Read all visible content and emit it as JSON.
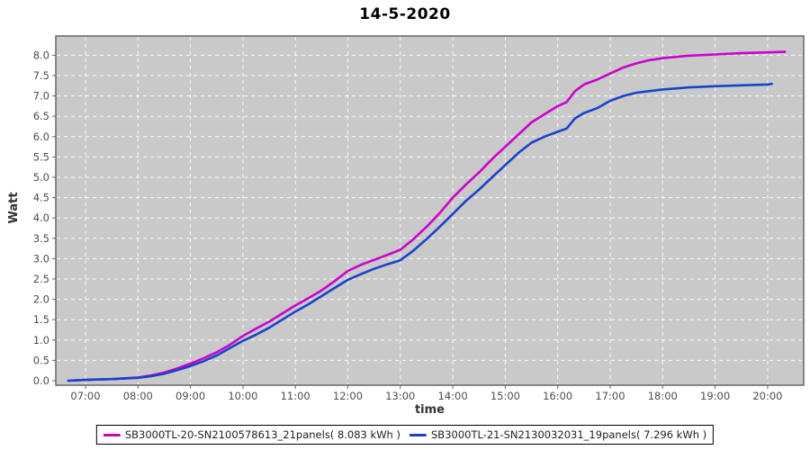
{
  "title": "14-5-2020",
  "chart_data": {
    "type": "line",
    "title": "14-5-2020",
    "xlabel": "time",
    "ylabel": "Watt",
    "plot_bg": "#c9c9c9",
    "grid": "white dashed, on",
    "legend_position": "bottom-center",
    "x_ticks": [
      {
        "label": "07:00",
        "hour": 7
      },
      {
        "label": "08:00",
        "hour": 8
      },
      {
        "label": "09:00",
        "hour": 9
      },
      {
        "label": "10:00",
        "hour": 10
      },
      {
        "label": "11:00",
        "hour": 11
      },
      {
        "label": "12:00",
        "hour": 12
      },
      {
        "label": "13:00",
        "hour": 13
      },
      {
        "label": "14:00",
        "hour": 14
      },
      {
        "label": "15:00",
        "hour": 15
      },
      {
        "label": "16:00",
        "hour": 16
      },
      {
        "label": "17:00",
        "hour": 17
      },
      {
        "label": "18:00",
        "hour": 18
      },
      {
        "label": "19:00",
        "hour": 19
      },
      {
        "label": "20:00",
        "hour": 20
      }
    ],
    "y_ticks": [
      "0.0",
      "0.5",
      "1.0",
      "1.5",
      "2.0",
      "2.5",
      "3.0",
      "3.5",
      "4.0",
      "4.5",
      "5.0",
      "5.5",
      "6.0",
      "6.5",
      "7.0",
      "7.5",
      "8.0"
    ],
    "xlim_hours": [
      6.43,
      20.69
    ],
    "ylim": [
      0,
      8.47
    ],
    "series": [
      {
        "name": "SB3000TL-20-SN2100578613_21panels( 8.083 kWh )",
        "color": "#cc00cc",
        "total_kwh": 8.083,
        "points": [
          [
            6.67,
            0.0
          ],
          [
            7.0,
            0.02
          ],
          [
            7.25,
            0.03
          ],
          [
            7.5,
            0.04
          ],
          [
            7.75,
            0.06
          ],
          [
            8.0,
            0.08
          ],
          [
            8.25,
            0.13
          ],
          [
            8.5,
            0.2
          ],
          [
            8.75,
            0.3
          ],
          [
            9.0,
            0.42
          ],
          [
            9.25,
            0.55
          ],
          [
            9.5,
            0.7
          ],
          [
            9.75,
            0.88
          ],
          [
            10.0,
            1.1
          ],
          [
            10.25,
            1.28
          ],
          [
            10.5,
            1.45
          ],
          [
            10.75,
            1.65
          ],
          [
            11.0,
            1.85
          ],
          [
            11.25,
            2.03
          ],
          [
            11.5,
            2.22
          ],
          [
            11.75,
            2.45
          ],
          [
            12.0,
            2.7
          ],
          [
            12.25,
            2.85
          ],
          [
            12.5,
            2.97
          ],
          [
            12.75,
            3.09
          ],
          [
            13.0,
            3.22
          ],
          [
            13.25,
            3.48
          ],
          [
            13.5,
            3.78
          ],
          [
            13.75,
            4.12
          ],
          [
            14.0,
            4.5
          ],
          [
            14.25,
            4.82
          ],
          [
            14.5,
            5.12
          ],
          [
            14.75,
            5.45
          ],
          [
            15.0,
            5.75
          ],
          [
            15.25,
            6.05
          ],
          [
            15.5,
            6.35
          ],
          [
            15.75,
            6.55
          ],
          [
            16.0,
            6.75
          ],
          [
            16.17,
            6.85
          ],
          [
            16.33,
            7.12
          ],
          [
            16.5,
            7.28
          ],
          [
            16.75,
            7.4
          ],
          [
            17.0,
            7.55
          ],
          [
            17.25,
            7.7
          ],
          [
            17.5,
            7.8
          ],
          [
            17.75,
            7.88
          ],
          [
            18.0,
            7.93
          ],
          [
            18.25,
            7.96
          ],
          [
            18.5,
            7.99
          ],
          [
            19.0,
            8.02
          ],
          [
            19.5,
            8.05
          ],
          [
            20.0,
            8.07
          ],
          [
            20.33,
            8.083
          ]
        ]
      },
      {
        "name": "SB3000TL-21-SN2130032031_19panels( 7.296 kWh )",
        "color": "#1743cb",
        "total_kwh": 7.296,
        "points": [
          [
            6.67,
            0.0
          ],
          [
            7.0,
            0.02
          ],
          [
            7.5,
            0.04
          ],
          [
            8.0,
            0.07
          ],
          [
            8.25,
            0.11
          ],
          [
            8.5,
            0.17
          ],
          [
            8.75,
            0.26
          ],
          [
            9.0,
            0.36
          ],
          [
            9.25,
            0.48
          ],
          [
            9.5,
            0.62
          ],
          [
            9.75,
            0.8
          ],
          [
            10.0,
            0.98
          ],
          [
            10.25,
            1.13
          ],
          [
            10.5,
            1.3
          ],
          [
            10.75,
            1.5
          ],
          [
            11.0,
            1.7
          ],
          [
            11.25,
            1.88
          ],
          [
            11.5,
            2.08
          ],
          [
            11.75,
            2.28
          ],
          [
            12.0,
            2.48
          ],
          [
            12.25,
            2.62
          ],
          [
            12.5,
            2.75
          ],
          [
            12.75,
            2.86
          ],
          [
            13.0,
            2.96
          ],
          [
            13.25,
            3.2
          ],
          [
            13.5,
            3.48
          ],
          [
            13.75,
            3.78
          ],
          [
            14.0,
            4.1
          ],
          [
            14.25,
            4.42
          ],
          [
            14.5,
            4.7
          ],
          [
            14.75,
            5.0
          ],
          [
            15.0,
            5.3
          ],
          [
            15.25,
            5.6
          ],
          [
            15.5,
            5.85
          ],
          [
            15.75,
            6.0
          ],
          [
            16.0,
            6.12
          ],
          [
            16.17,
            6.2
          ],
          [
            16.33,
            6.45
          ],
          [
            16.5,
            6.58
          ],
          [
            16.75,
            6.7
          ],
          [
            17.0,
            6.88
          ],
          [
            17.25,
            7.0
          ],
          [
            17.5,
            7.08
          ],
          [
            17.75,
            7.12
          ],
          [
            18.0,
            7.16
          ],
          [
            18.5,
            7.21
          ],
          [
            19.0,
            7.24
          ],
          [
            19.5,
            7.26
          ],
          [
            20.0,
            7.28
          ],
          [
            20.08,
            7.296
          ]
        ]
      }
    ]
  }
}
